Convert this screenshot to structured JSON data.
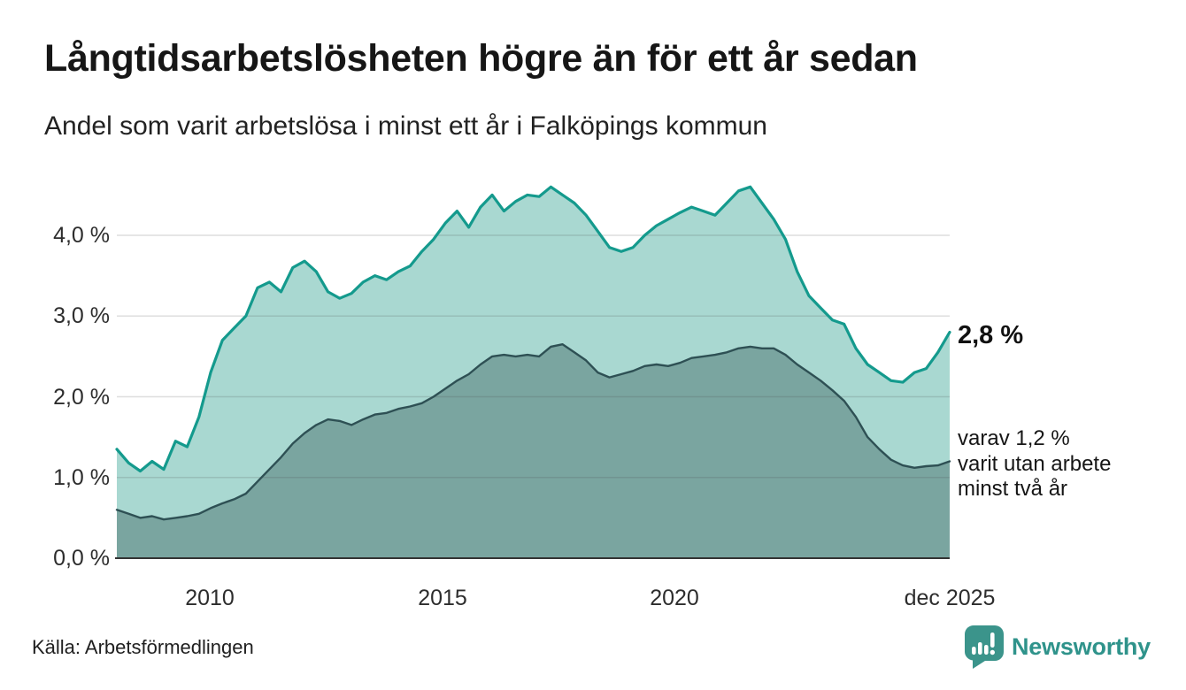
{
  "title": "Långtidsarbetslösheten högre än för ett år sedan",
  "subtitle": "Andel som varit arbetslösa i minst ett år i Falköpings kommun",
  "source": "Källa: Arbetsförmedlingen",
  "branding": {
    "name": "Newsworthy",
    "color": "#2f938b",
    "icon": "newsworthy-speech-bubble-bar-chart"
  },
  "annotations": {
    "latest_total": "2,8 %",
    "secondary_lines": [
      "varav 1,2 %",
      "varit utan arbete",
      "minst två år"
    ]
  },
  "chart_data": {
    "type": "area",
    "title": "Långtidsarbetslösheten högre än för ett år sedan",
    "subtitle": "Andel som varit arbetslösa i minst ett år i Falköpings kommun",
    "x_start_year": 2008.0,
    "x_end_year": 2025.92,
    "x_step_years": 0.25,
    "xticks": [
      {
        "label": "2010",
        "year": 2010
      },
      {
        "label": "2015",
        "year": 2015
      },
      {
        "label": "2020",
        "year": 2020
      },
      {
        "label": "dec 2025",
        "year": 2025.92
      }
    ],
    "yticks": [
      {
        "label": "0,0 %",
        "value": 0
      },
      {
        "label": "1,0 %",
        "value": 1
      },
      {
        "label": "2,0 %",
        "value": 2
      },
      {
        "label": "3,0 %",
        "value": 3
      },
      {
        "label": "4,0 %",
        "value": 4
      }
    ],
    "gridline_values": [
      1,
      2,
      3,
      4
    ],
    "ylim": [
      0,
      4.75
    ],
    "grid": "horizontal-only",
    "legend": "none",
    "unit": "%",
    "colors": {
      "total_line": "#149a8d",
      "total_fill": "#a9d8d1",
      "two_year_line": "#2e5054",
      "two_year_fill": "#7aa5a0",
      "baseline": "#333333",
      "gridline": "rgba(70,70,70,0.18)"
    },
    "series": [
      {
        "name": "Andel arbetslösa minst ett år",
        "end_label": "2,8 %",
        "line_color": "#149a8d",
        "fill_color": "#a9d8d1",
        "line_width": 3.2,
        "values": [
          1.35,
          1.18,
          1.08,
          1.2,
          1.1,
          1.45,
          1.38,
          1.75,
          2.3,
          2.7,
          2.85,
          3.0,
          3.35,
          3.42,
          3.3,
          3.6,
          3.68,
          3.55,
          3.3,
          3.22,
          3.28,
          3.42,
          3.5,
          3.45,
          3.55,
          3.62,
          3.8,
          3.95,
          4.15,
          4.3,
          4.1,
          4.35,
          4.5,
          4.3,
          4.42,
          4.5,
          4.48,
          4.6,
          4.5,
          4.4,
          4.25,
          4.05,
          3.85,
          3.8,
          3.85,
          4.0,
          4.12,
          4.2,
          4.28,
          4.35,
          4.3,
          4.25,
          4.4,
          4.55,
          4.6,
          4.4,
          4.2,
          3.95,
          3.55,
          3.25,
          3.1,
          2.95,
          2.9,
          2.6,
          2.4,
          2.3,
          2.2,
          2.18,
          2.3,
          2.35,
          2.55,
          2.8
        ]
      },
      {
        "name": "varav utan arbete minst två år",
        "end_label": "varav 1,2 % varit utan arbete minst två år",
        "line_color": "#2e5054",
        "fill_color": "#7aa5a0",
        "line_width": 2.4,
        "values": [
          0.6,
          0.55,
          0.5,
          0.52,
          0.48,
          0.5,
          0.52,
          0.55,
          0.62,
          0.68,
          0.73,
          0.8,
          0.95,
          1.1,
          1.25,
          1.42,
          1.55,
          1.65,
          1.72,
          1.7,
          1.65,
          1.72,
          1.78,
          1.8,
          1.85,
          1.88,
          1.92,
          2.0,
          2.1,
          2.2,
          2.28,
          2.4,
          2.5,
          2.52,
          2.5,
          2.52,
          2.5,
          2.62,
          2.65,
          2.55,
          2.45,
          2.3,
          2.24,
          2.28,
          2.32,
          2.38,
          2.4,
          2.38,
          2.42,
          2.48,
          2.5,
          2.52,
          2.55,
          2.6,
          2.62,
          2.6,
          2.6,
          2.52,
          2.4,
          2.3,
          2.2,
          2.08,
          1.95,
          1.75,
          1.5,
          1.35,
          1.22,
          1.15,
          1.12,
          1.14,
          1.15,
          1.2
        ]
      }
    ]
  }
}
